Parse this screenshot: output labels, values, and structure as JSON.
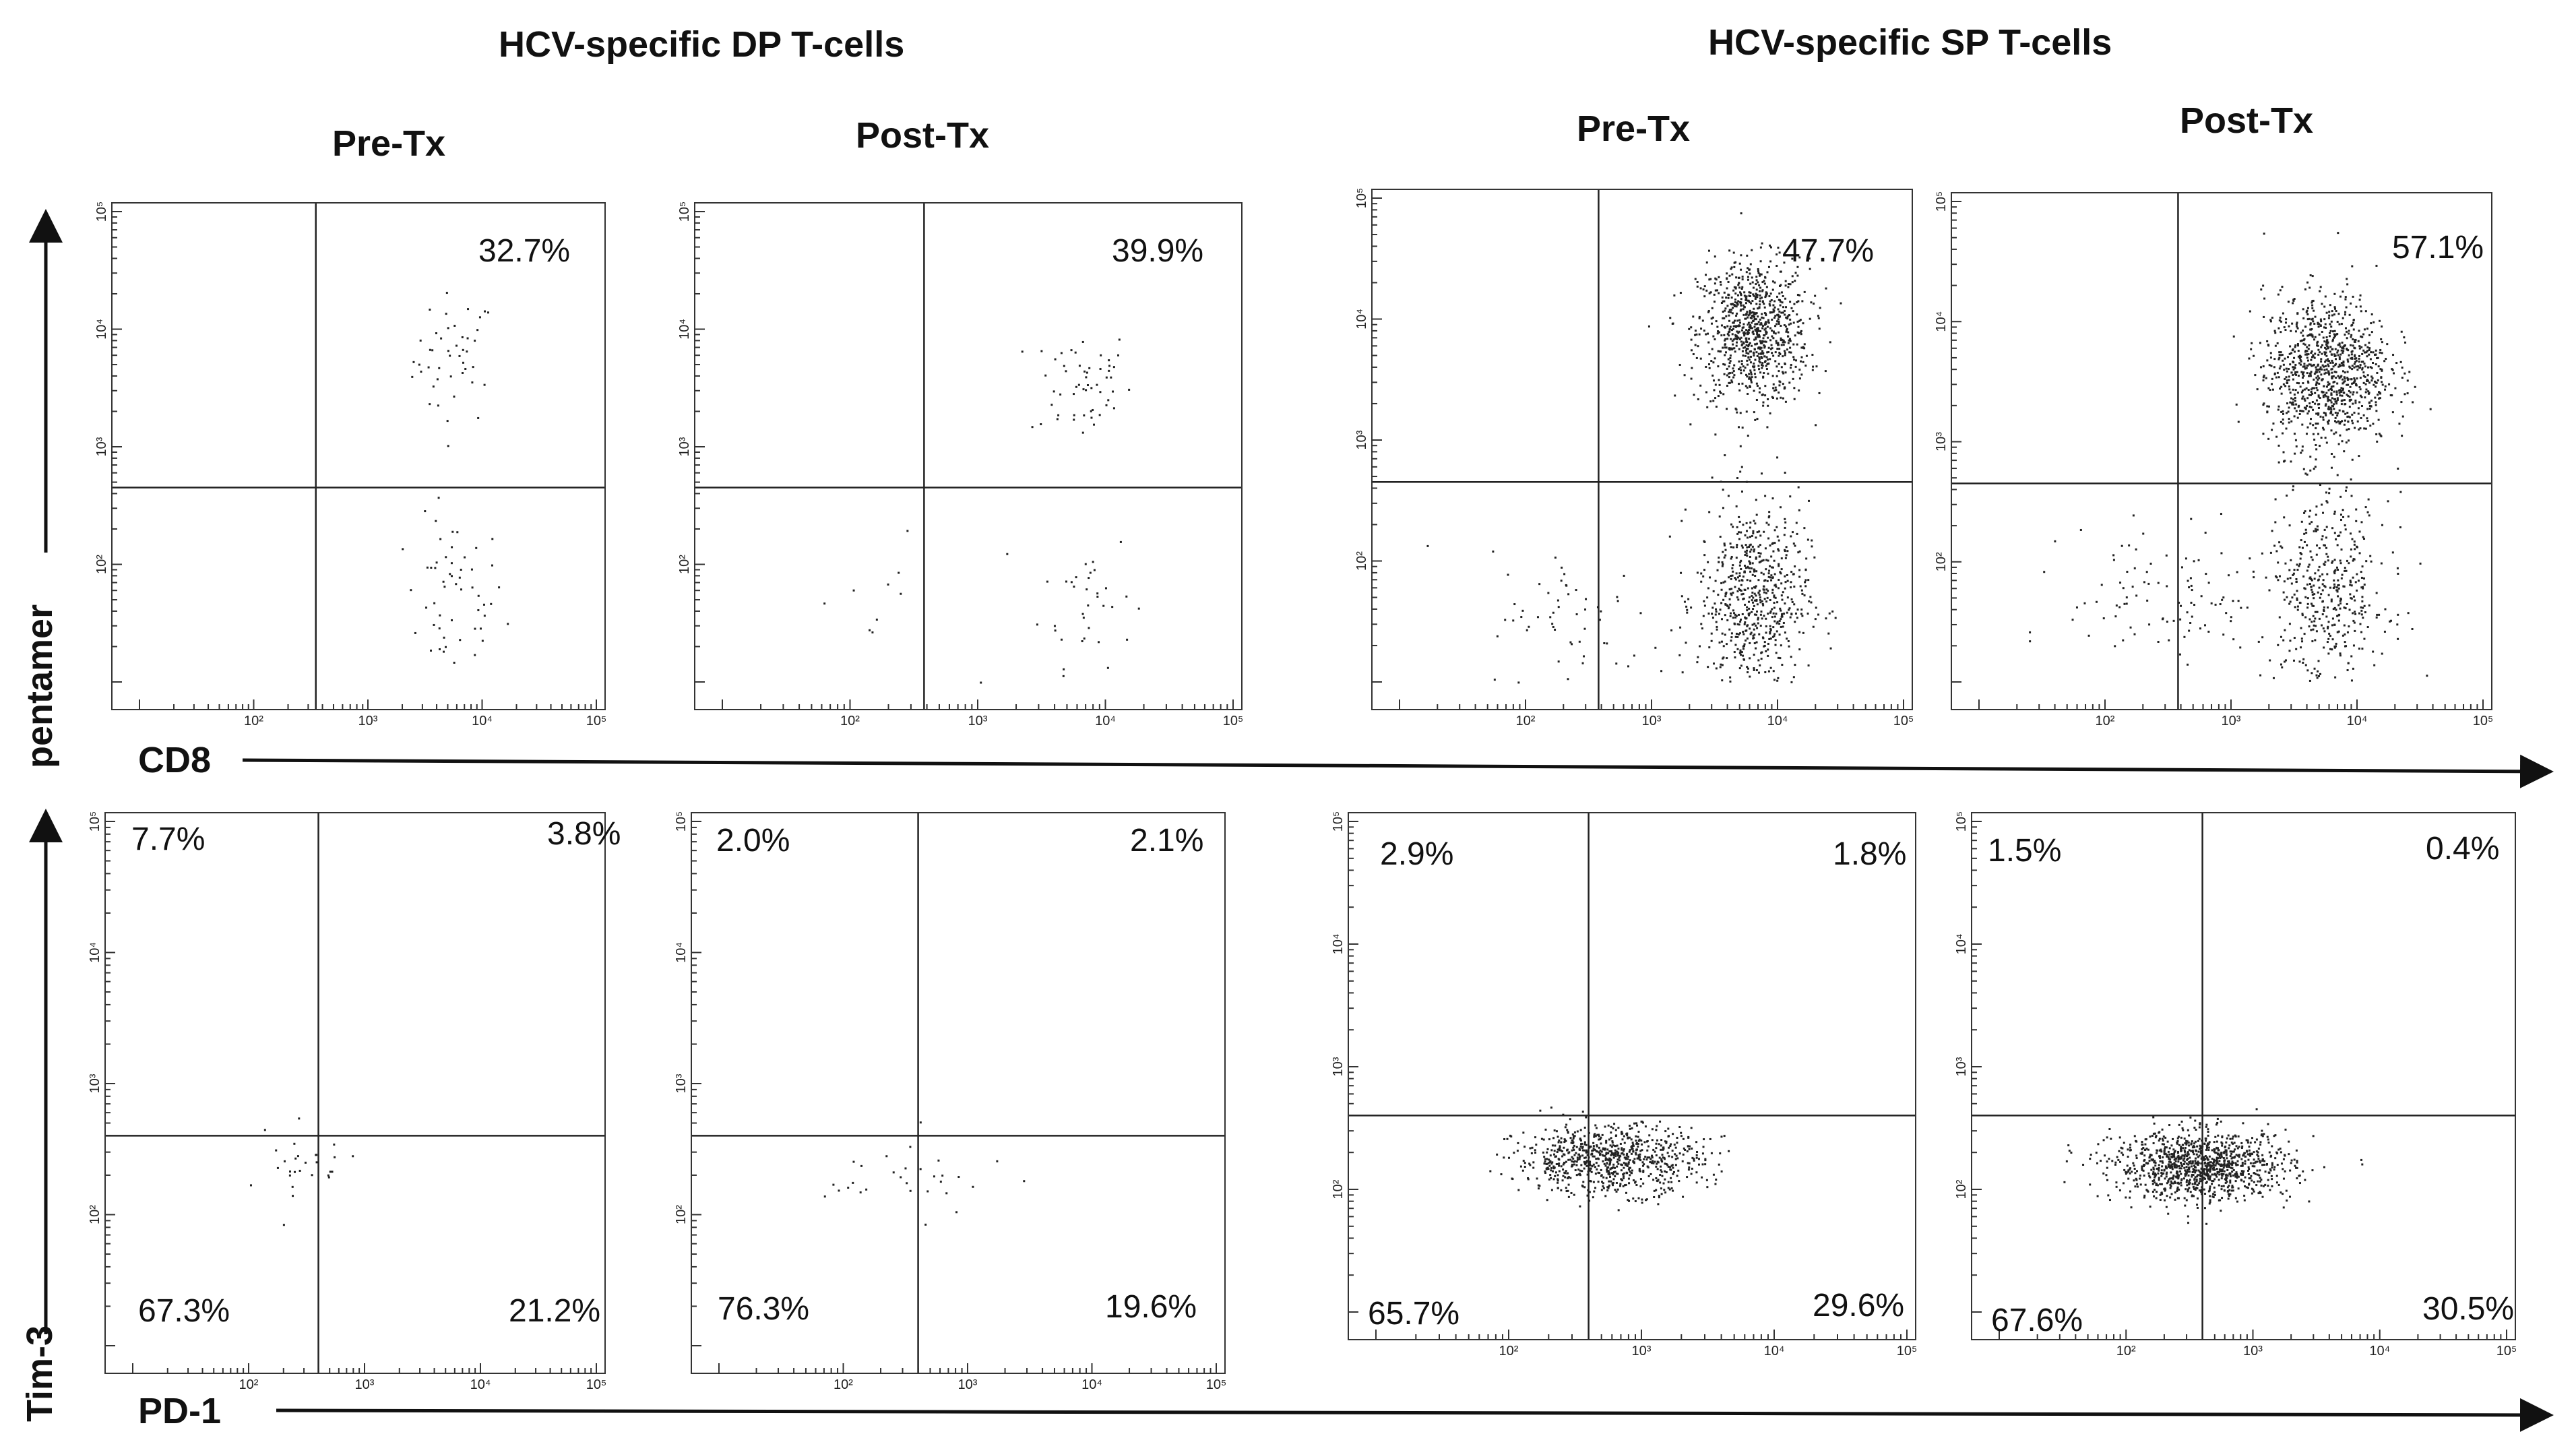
{
  "headers": {
    "group_dp": "HCV-specific DP T-cells",
    "group_sp": "HCV-specific SP T-cells",
    "pre": "Pre-Tx",
    "post": "Post-Tx"
  },
  "axes": {
    "top_x": "CD8",
    "top_y": "pentamer",
    "bottom_x": "PD-1",
    "bottom_y": "Tim-3",
    "tick_labels": [
      "10²",
      "10³",
      "10⁴",
      "10⁵"
    ]
  },
  "chart_data": [
    {
      "type": "scatter",
      "panel": "DP Pre-Tx",
      "row": "top",
      "xlabel": "CD8",
      "ylabel": "pentamer",
      "xlim": [
        10,
        100000
      ],
      "ylim": [
        10,
        100000
      ],
      "gate": {
        "x": 350,
        "y": 450
      },
      "quadrant_labels": {
        "top_right": "32.7%"
      }
    },
    {
      "type": "scatter",
      "panel": "DP Post-Tx",
      "row": "top",
      "xlabel": "CD8",
      "ylabel": "pentamer",
      "xlim": [
        10,
        100000
      ],
      "ylim": [
        10,
        100000
      ],
      "gate": {
        "x": 380,
        "y": 450
      },
      "quadrant_labels": {
        "top_right": "39.9%"
      }
    },
    {
      "type": "scatter",
      "panel": "SP Pre-Tx",
      "row": "top",
      "xlabel": "CD8",
      "ylabel": "pentamer",
      "xlim": [
        10,
        100000
      ],
      "ylim": [
        10,
        100000
      ],
      "gate": {
        "x": 380,
        "y": 450
      },
      "quadrant_labels": {
        "top_right": "47.7%"
      }
    },
    {
      "type": "scatter",
      "panel": "SP Post-Tx",
      "row": "top",
      "xlabel": "CD8",
      "ylabel": "pentamer",
      "xlim": [
        10,
        100000
      ],
      "ylim": [
        10,
        100000
      ],
      "gate": {
        "x": 380,
        "y": 450
      },
      "quadrant_labels": {
        "top_right": "57.1%"
      }
    },
    {
      "type": "scatter",
      "panel": "DP Pre-Tx",
      "row": "bottom",
      "xlabel": "PD-1",
      "ylabel": "Tim-3",
      "xlim": [
        10,
        100000
      ],
      "ylim": [
        10,
        100000
      ],
      "gate": {
        "x": 400,
        "y": 400
      },
      "quadrant_labels": {
        "top_left": "7.7%",
        "top_right": "3.8%",
        "bottom_left": "67.3%",
        "bottom_right": "21.2%"
      }
    },
    {
      "type": "scatter",
      "panel": "DP Post-Tx",
      "row": "bottom",
      "xlabel": "PD-1",
      "ylabel": "Tim-3",
      "xlim": [
        10,
        100000
      ],
      "ylim": [
        10,
        100000
      ],
      "gate": {
        "x": 400,
        "y": 400
      },
      "quadrant_labels": {
        "top_left": "2.0%",
        "top_right": "2.1%",
        "bottom_left": "76.3%",
        "bottom_right": "19.6%"
      }
    },
    {
      "type": "scatter",
      "panel": "SP Pre-Tx",
      "row": "bottom",
      "xlabel": "PD-1",
      "ylabel": "Tim-3",
      "xlim": [
        10,
        100000
      ],
      "ylim": [
        10,
        100000
      ],
      "gate": {
        "x": 400,
        "y": 400
      },
      "quadrant_labels": {
        "top_left": "2.9%",
        "top_right": "1.8%",
        "bottom_left": "65.7%",
        "bottom_right": "29.6%"
      }
    },
    {
      "type": "scatter",
      "panel": "SP Post-Tx",
      "row": "bottom",
      "xlabel": "PD-1",
      "ylabel": "Tim-3",
      "xlim": [
        10,
        100000
      ],
      "ylim": [
        10,
        100000
      ],
      "gate": {
        "x": 400,
        "y": 400
      },
      "quadrant_labels": {
        "top_left": "1.5%",
        "top_right": "0.4%",
        "bottom_left": "67.6%",
        "bottom_right": "30.5%"
      }
    }
  ]
}
